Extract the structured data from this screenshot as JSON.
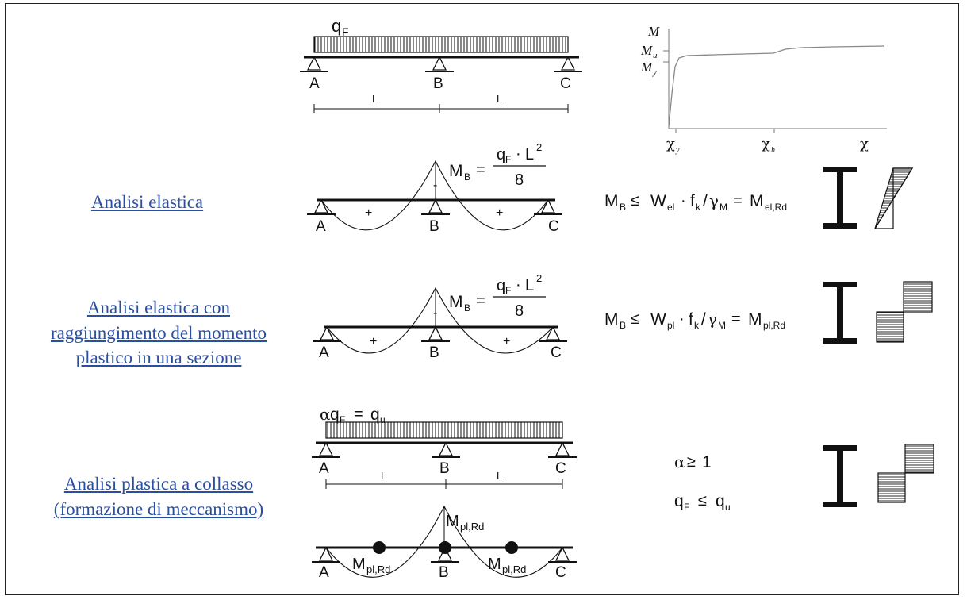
{
  "links": {
    "elastic": [
      "Analisi elastica"
    ],
    "elastic_plastic": [
      "Analisi elastica con",
      "raggiungimento del momento",
      "plastico in una sezione"
    ],
    "plastic": [
      "Analisi plastica a collasso",
      "(formazione di meccanismo)"
    ]
  },
  "supports": {
    "a": "A",
    "b": "B",
    "c": "C"
  },
  "span": {
    "l": "L"
  },
  "signs": {
    "plus": "+",
    "minus": "-"
  },
  "load": {
    "q": "q",
    "q_sub": "F",
    "alpha": "α",
    "eq": "=",
    "qu_sub": "u"
  },
  "moment_B": {
    "m": "M",
    "m_sub": "B",
    "eq": "=",
    "num_q": "q",
    "num_q_sub": "F",
    "dot": "·",
    "num_l": "L",
    "num_exp": "2",
    "den": "8"
  },
  "check_el": {
    "m": "M",
    "m_sub": "B",
    "le": "≤",
    "w": "W",
    "w_sub": "el",
    "dot": "·",
    "f": "f",
    "f_sub": "k",
    "slash": "/",
    "g": "γ",
    "g_sub": "M",
    "eq": "=",
    "r": "M",
    "r_sub": "el,Rd"
  },
  "check_pl": {
    "m": "M",
    "m_sub": "B",
    "le": "≤",
    "w": "W",
    "w_sub": "pl",
    "dot": "·",
    "f": "f",
    "f_sub": "k",
    "slash": "/",
    "g": "γ",
    "g_sub": "M",
    "eq": "=",
    "r": "M",
    "r_sub": "pl,Rd"
  },
  "collapse": {
    "alpha": "α",
    "ge": "≥",
    "one": "1",
    "q": "q",
    "q_sub": "F",
    "le": "≤",
    "qu": "q",
    "qu_sub": "u",
    "mpl": "M",
    "mpl_sub": "pl,Rd"
  },
  "graph": {
    "m": "M",
    "mu": "M",
    "mu_sub": "u",
    "my": "M",
    "my_sub": "y",
    "chi": "χ",
    "chi_y_sub": "y",
    "chi_h_sub": "h"
  },
  "colors": {
    "link": "#2a4ea0",
    "ink": "#111111"
  }
}
